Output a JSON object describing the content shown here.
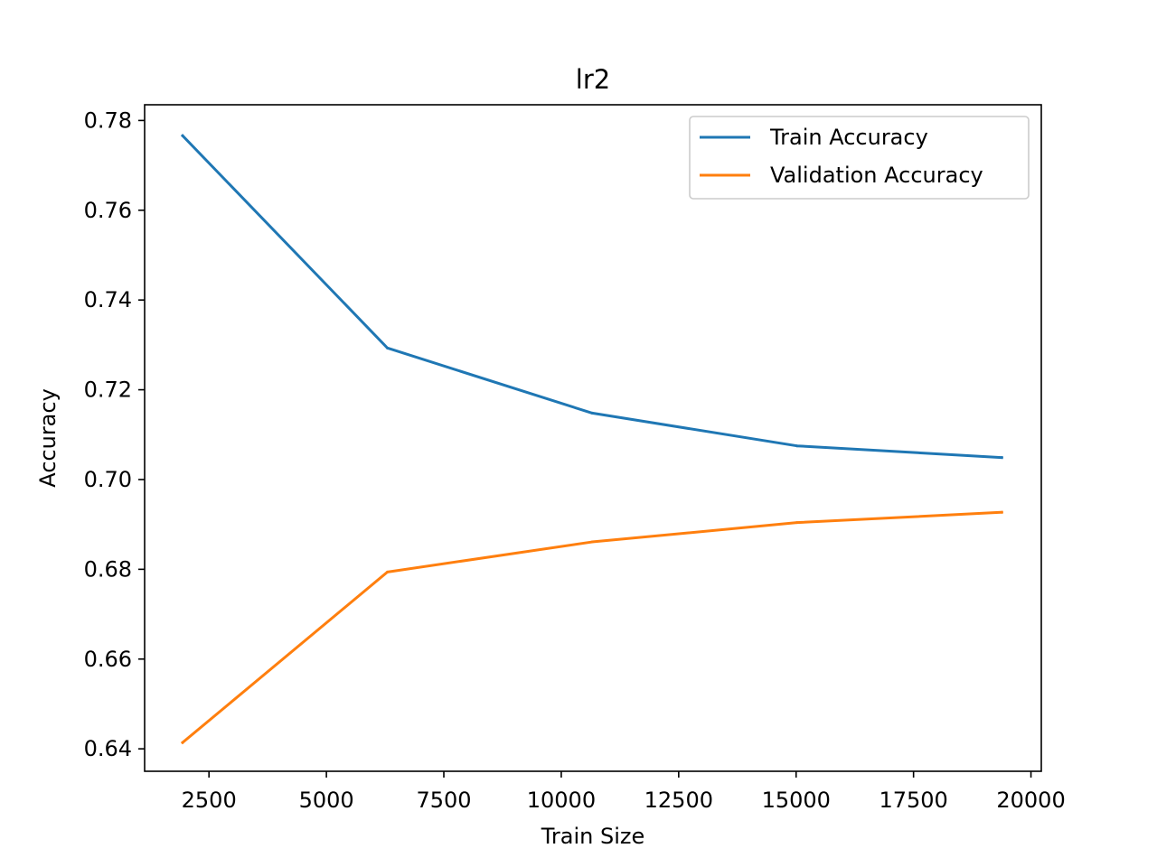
{
  "chart_data": {
    "type": "line",
    "title": "lr2",
    "xlabel": "Train Size",
    "ylabel": "Accuracy",
    "xlim": [
      1130,
      20220
    ],
    "ylim": [
      0.635,
      0.7835
    ],
    "xticks": [
      2500,
      5000,
      7500,
      10000,
      12500,
      15000,
      17500,
      20000
    ],
    "yticks": [
      0.64,
      0.66,
      0.68,
      0.7,
      0.72,
      0.74,
      0.76,
      0.78
    ],
    "xtick_labels": [
      "2500",
      "5000",
      "7500",
      "10000",
      "12500",
      "15000",
      "17500",
      "20000"
    ],
    "ytick_labels": [
      "0.64",
      "0.66",
      "0.68",
      "0.70",
      "0.72",
      "0.74",
      "0.76",
      "0.78"
    ],
    "grid": false,
    "legend_position": "top-right",
    "x": [
      1939,
      6299,
      10658,
      15018,
      19378
    ],
    "series": [
      {
        "name": "Train Accuracy",
        "color": "#1f77b4",
        "values": [
          0.7766,
          0.7293,
          0.7148,
          0.7075,
          0.7049
        ]
      },
      {
        "name": "Validation Accuracy",
        "color": "#ff7f0e",
        "values": [
          0.6414,
          0.6794,
          0.6861,
          0.6904,
          0.6927
        ]
      }
    ]
  }
}
